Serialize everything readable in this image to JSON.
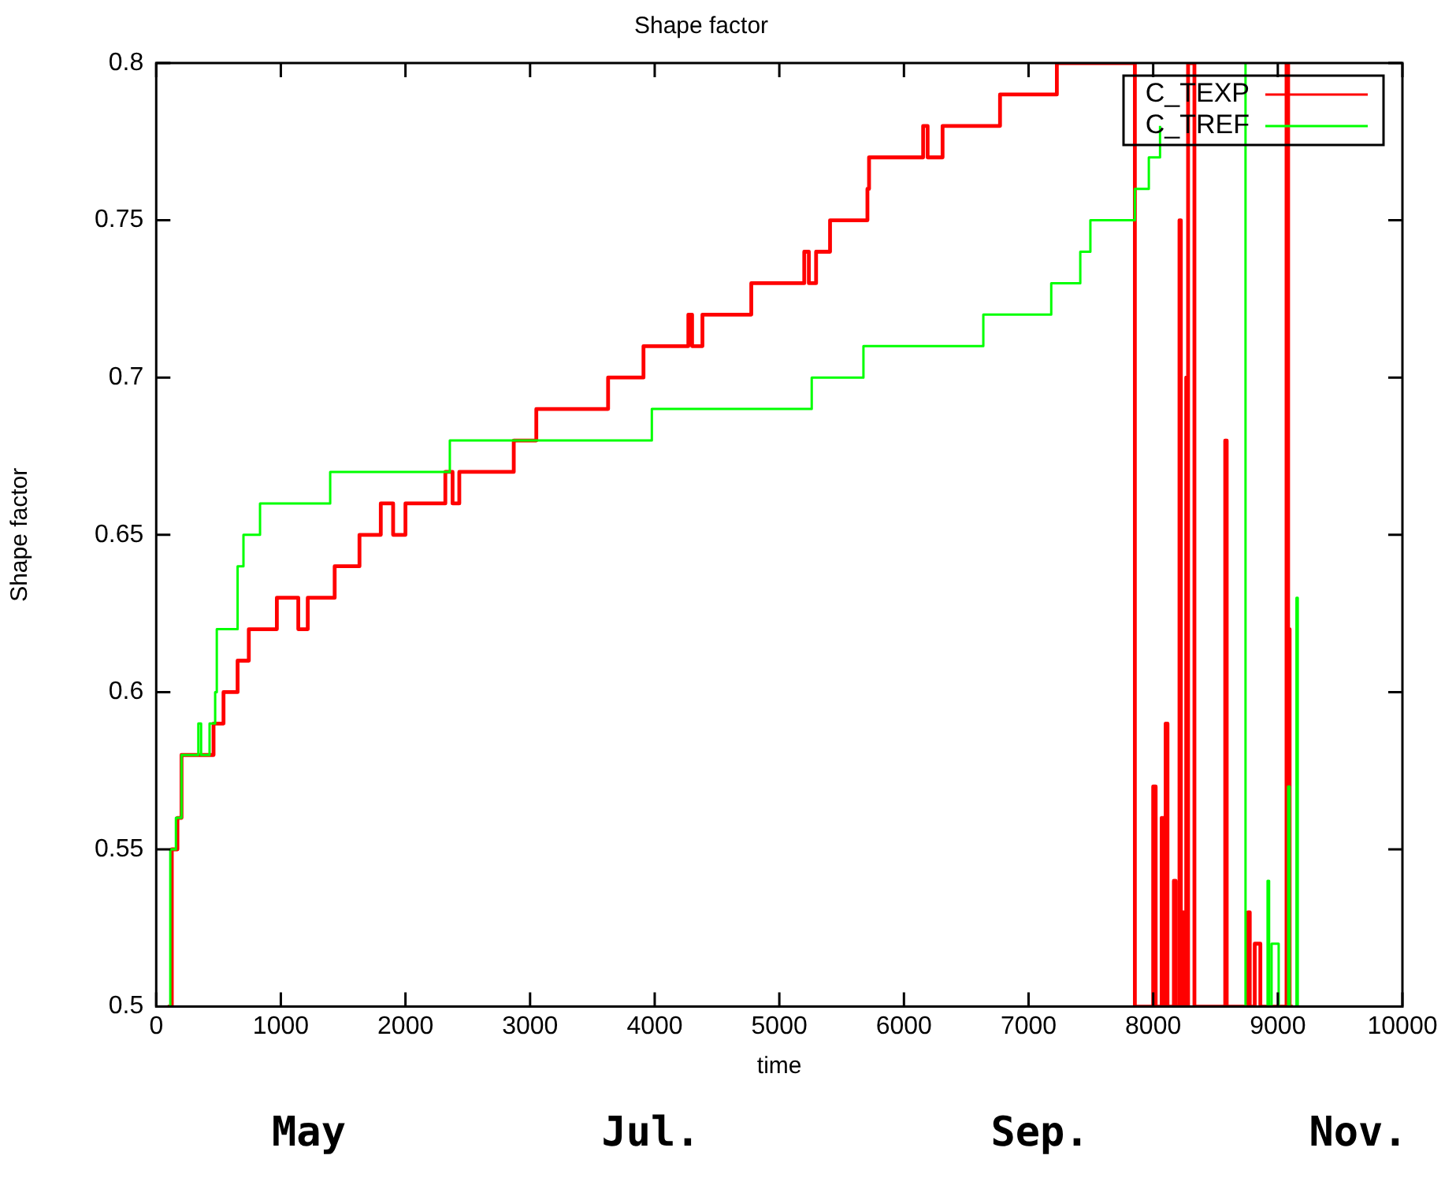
{
  "chart_data": {
    "type": "step",
    "title": "Shape factor",
    "xlabel": "time",
    "ylabel": "Shape factor",
    "xlim": [
      0,
      10000
    ],
    "xticks": [
      0,
      1000,
      2000,
      3000,
      4000,
      5000,
      6000,
      7000,
      8000,
      9000,
      10000
    ],
    "ylim": [
      0.5,
      0.8
    ],
    "yticks": [
      0.5,
      0.55,
      0.6,
      0.65,
      0.7,
      0.75,
      0.8
    ],
    "grid": false,
    "legend": "top right",
    "annotations": [
      "May",
      "Jul.",
      "Sep.",
      "Nov."
    ],
    "series": [
      {
        "name": "C_TEXP",
        "color": "#ff0000",
        "x": [
          92,
          125,
          170,
          203,
          460,
          540,
          653,
          743,
          968,
          1140,
          1216,
          1432,
          1631,
          1802,
          1901,
          2000,
          2320,
          2378,
          2432,
          2869,
          3050,
          3626,
          3910,
          4270,
          4300,
          4383,
          4775,
          5200,
          5237,
          5295,
          5407,
          5707,
          5720,
          6154,
          6190,
          6310,
          6771,
          7227,
          7853,
          8000,
          8020,
          8068,
          8085,
          8100,
          8115,
          8166,
          8180,
          8211,
          8222,
          8233,
          8245,
          8265,
          8275,
          8280,
          8331,
          8578,
          8590,
          8761,
          8775,
          8815,
          8860,
          9070,
          9083,
          9095,
          9120
        ],
        "values": [
          0.5,
          0.55,
          0.56,
          0.58,
          0.59,
          0.6,
          0.61,
          0.62,
          0.63,
          0.62,
          0.63,
          0.64,
          0.65,
          0.66,
          0.65,
          0.66,
          0.67,
          0.66,
          0.67,
          0.68,
          0.69,
          0.7,
          0.71,
          0.72,
          0.71,
          0.72,
          0.73,
          0.74,
          0.73,
          0.74,
          0.75,
          0.76,
          0.77,
          0.78,
          0.77,
          0.78,
          0.79,
          0.8,
          0.5,
          0.57,
          0.5,
          0.56,
          0.5,
          0.59,
          0.5,
          0.54,
          0.5,
          0.75,
          0.5,
          0.53,
          0.5,
          0.7,
          0.5,
          0.8,
          0.5,
          0.68,
          0.5,
          0.53,
          0.5,
          0.52,
          0.5,
          0.8,
          0.62,
          0.5,
          0.5
        ]
      },
      {
        "name": "C_TREF",
        "color": "#00ff00",
        "x": [
          80,
          113,
          158,
          203,
          338,
          360,
          428,
          473,
          486,
          653,
          700,
          833,
          1396,
          2356,
          3977,
          5260,
          5675,
          6637,
          7182,
          7415,
          7496,
          7853,
          7965,
          8055,
          8120,
          8739,
          8741,
          8918,
          8930,
          8950,
          9007,
          9083,
          9095,
          9150,
          9160,
          9200
        ],
        "values": [
          0.5,
          0.55,
          0.56,
          0.58,
          0.59,
          0.58,
          0.59,
          0.6,
          0.62,
          0.64,
          0.65,
          0.66,
          0.67,
          0.68,
          0.69,
          0.7,
          0.71,
          0.72,
          0.73,
          0.74,
          0.75,
          0.76,
          0.77,
          0.78,
          null,
          0.8,
          0.5,
          0.54,
          0.5,
          0.52,
          0.5,
          0.57,
          0.5,
          0.63,
          0.5,
          0.5
        ]
      }
    ]
  }
}
